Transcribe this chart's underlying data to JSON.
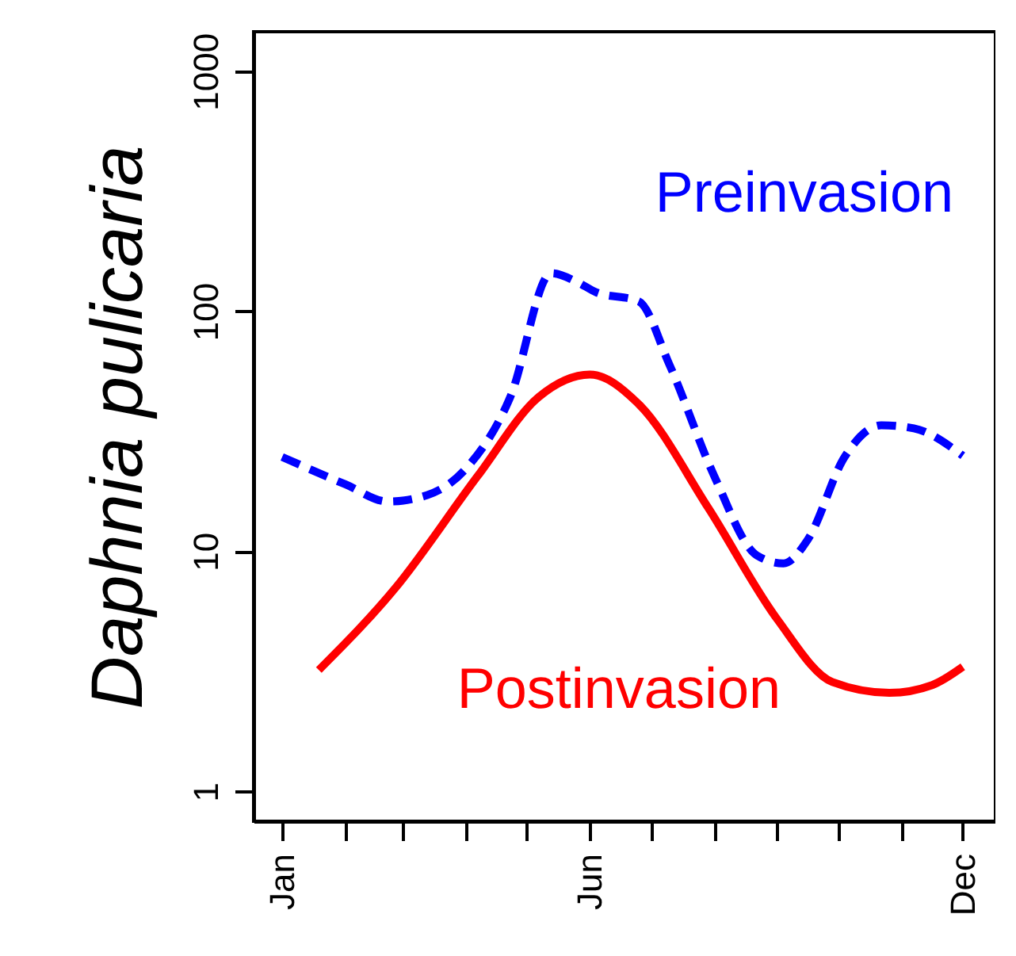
{
  "chart_data": {
    "type": "line",
    "ylabel": "Daphnia pulicaria",
    "log": "y",
    "grid": false,
    "marker": "none",
    "xlim": [
      "--01-01",
      "--12-31"
    ],
    "ylim": [
      0.75,
      1460
    ],
    "xticks": [
      {
        "value": "--01-15",
        "label": "Jan"
      },
      {
        "value": "--02-15",
        "label": null
      },
      {
        "value": "--03-15",
        "label": null
      },
      {
        "value": "--04-15",
        "label": null
      },
      {
        "value": "--05-15",
        "label": null
      },
      {
        "value": "--06-15",
        "label": "Jun"
      },
      {
        "value": "--07-15",
        "label": null
      },
      {
        "value": "--08-15",
        "label": null
      },
      {
        "value": "--09-15",
        "label": null
      },
      {
        "value": "--10-15",
        "label": null
      },
      {
        "value": "--11-15",
        "label": null
      },
      {
        "value": "--12-15",
        "label": "Dec"
      }
    ],
    "yticks": [
      1,
      10,
      100,
      1000
    ],
    "series": [
      {
        "name": "Preinvasion",
        "color": "#0000ff",
        "line_style": "dashed",
        "x": [
          "--01-15",
          "--02-15",
          "--03-08",
          "--03-27",
          "--04-15",
          "--05-07",
          "--05-27",
          "--06-09",
          "--06-18",
          "--07-09",
          "--07-24",
          "--08-15",
          "--09-05",
          "--09-18",
          "--09-30",
          "--10-18",
          "--11-05",
          "--11-21",
          "--12-15"
        ],
        "values": [
          24.7,
          19,
          16.1,
          17.1,
          22,
          44,
          144,
          132,
          120,
          110,
          60,
          20.6,
          9.6,
          8.9,
          11.2,
          24.7,
          33.5,
          32.5,
          25
        ]
      },
      {
        "name": "Postinvasion",
        "color": "#ff0000",
        "line_style": "solid",
        "x": [
          "--02-02",
          "--03-12",
          "--04-21",
          "--05-21",
          "--06-15",
          "--07-09",
          "--08-12",
          "--09-15",
          "--10-12",
          "--11-09",
          "--11-30",
          "--12-15"
        ],
        "values": [
          3.2,
          7.1,
          20.6,
          44,
          54.5,
          41,
          15.2,
          5.2,
          2.85,
          2.57,
          2.77,
          3.3
        ]
      }
    ]
  }
}
